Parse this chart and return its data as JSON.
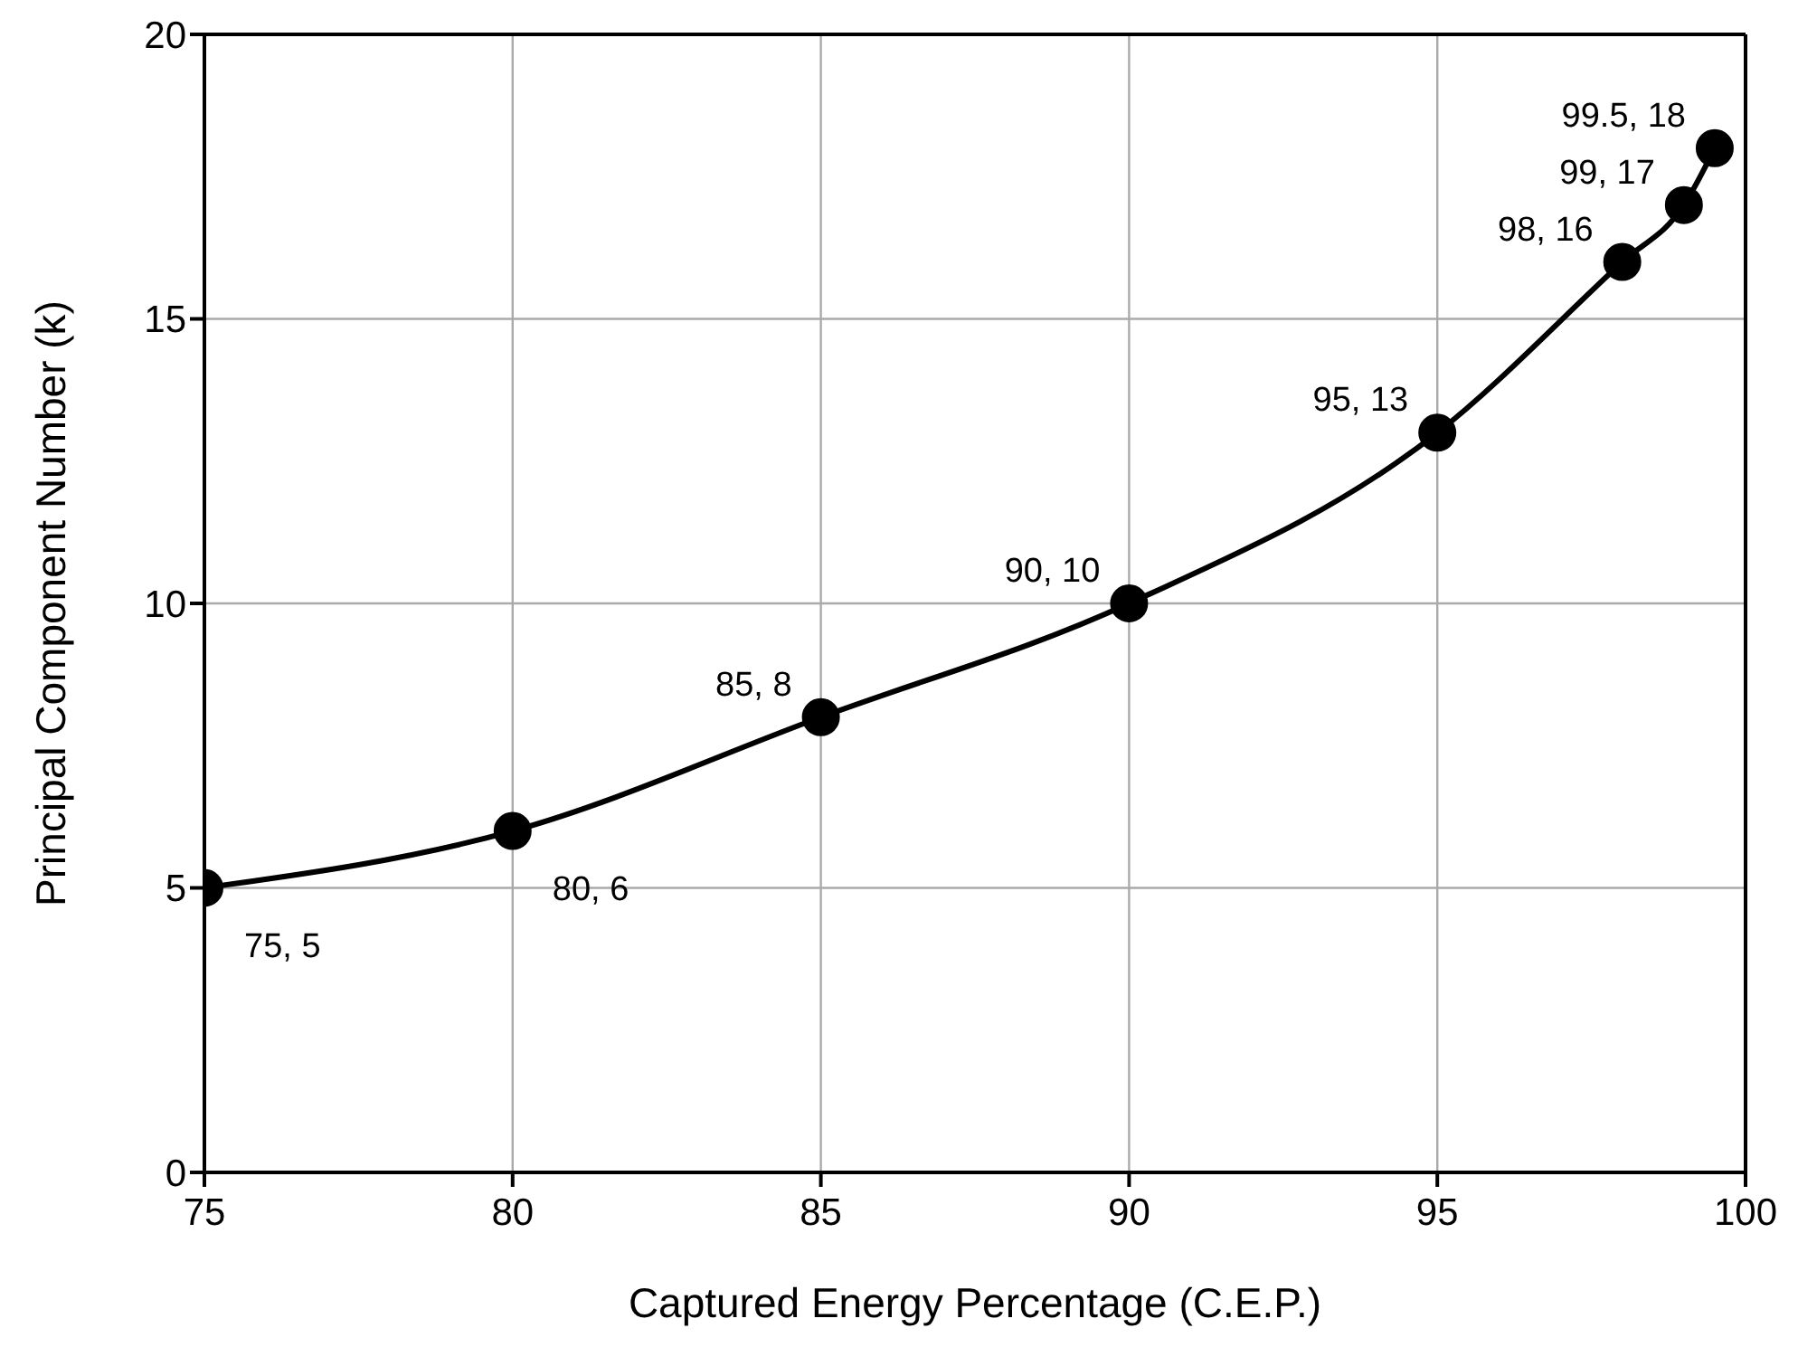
{
  "chart_data": {
    "type": "line",
    "xlabel": "Captured Energy Percentage (C.E.P.)",
    "ylabel": "Principal Component Number (k)",
    "x": [
      75,
      80,
      85,
      90,
      95,
      98,
      99,
      99.5
    ],
    "series": [
      {
        "color": "#000000",
        "values": [
          5,
          6,
          8,
          10,
          13,
          16,
          17,
          18
        ],
        "value_labels": [
          "75, 5",
          "80, 6",
          "85, 8",
          "90, 10",
          "95, 13",
          "98, 16",
          "99, 17",
          "99.5, 18"
        ]
      }
    ],
    "xlim": [
      75,
      100
    ],
    "xticks": [
      75,
      80,
      85,
      90,
      95,
      100
    ],
    "ylim": [
      0,
      20
    ],
    "yticks": [
      0,
      5,
      10,
      15,
      20
    ],
    "grid": true,
    "marker": "circle",
    "line_style": "solid"
  }
}
